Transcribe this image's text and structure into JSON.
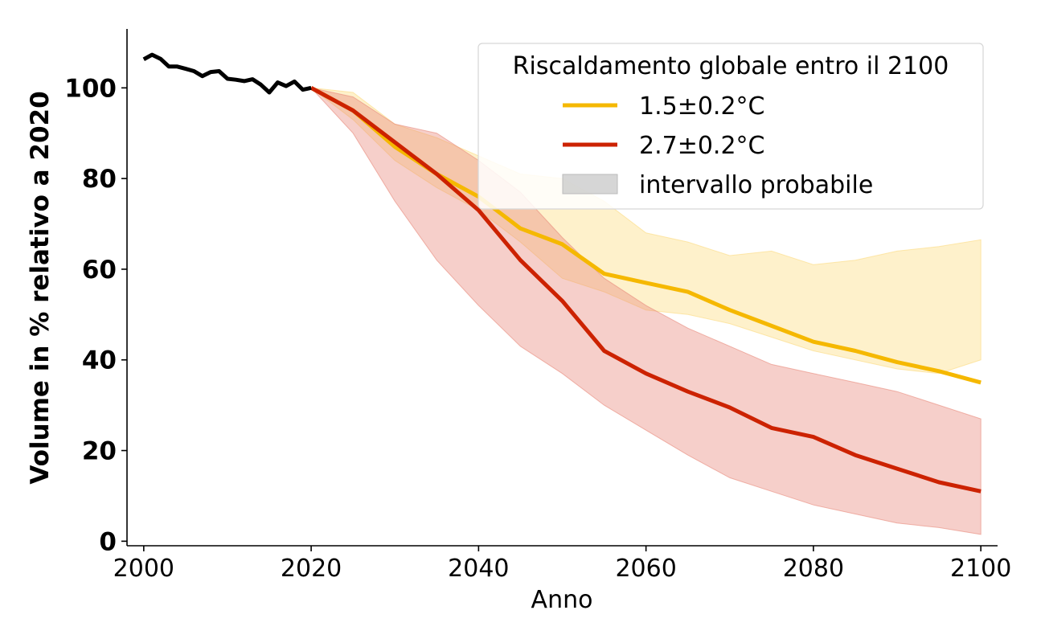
{
  "chart_data": {
    "type": "line",
    "title": "",
    "xlabel": "Anno",
    "ylabel": "Volume in % relativo a 2020",
    "xlim": [
      1998,
      2102
    ],
    "ylim": [
      -1,
      113
    ],
    "xticks": [
      2000,
      2020,
      2040,
      2060,
      2080,
      2100
    ],
    "yticks": [
      0,
      20,
      40,
      60,
      80,
      100
    ],
    "grid": false,
    "legend": {
      "position": "top-right",
      "title": "Riscaldamento globale entro il 2100",
      "entries": [
        "1.5±0.2°C",
        "2.7±0.2°C",
        "intervallo probabile"
      ]
    },
    "historical": {
      "color": "#000000",
      "x": [
        2000,
        2001,
        2002,
        2003,
        2004,
        2005,
        2006,
        2007,
        2008,
        2009,
        2010,
        2011,
        2012,
        2013,
        2014,
        2015,
        2016,
        2017,
        2018,
        2019,
        2020
      ],
      "y": [
        106.3,
        107.3,
        106.4,
        104.7,
        104.7,
        104.2,
        103.7,
        102.6,
        103.5,
        103.7,
        102.0,
        101.8,
        101.5,
        101.9,
        100.7,
        99.0,
        101.2,
        100.4,
        101.4,
        99.6,
        100.0
      ]
    },
    "series": [
      {
        "name": "1.5±0.2°C",
        "color": "#f5b800",
        "band_color": "#fcdb7e",
        "x": [
          2020,
          2025,
          2030,
          2035,
          2040,
          2045,
          2050,
          2055,
          2060,
          2065,
          2070,
          2075,
          2080,
          2085,
          2090,
          2095,
          2100
        ],
        "y": [
          100,
          95,
          87,
          81,
          76,
          69,
          65.5,
          59,
          57,
          55,
          51,
          47.5,
          44,
          42,
          39.5,
          37.5,
          35
        ],
        "low": [
          100,
          93,
          84,
          78,
          73,
          66,
          58,
          55,
          51,
          50,
          48,
          45,
          42,
          40,
          38,
          37,
          40
        ],
        "high": [
          100,
          99,
          92,
          89,
          85,
          81,
          80,
          75,
          68,
          66,
          63,
          64,
          61,
          62,
          64,
          65,
          66.5
        ]
      },
      {
        "name": "2.7±0.2°C",
        "color": "#cc2200",
        "band_color": "#e8887a",
        "x": [
          2020,
          2025,
          2030,
          2035,
          2040,
          2045,
          2050,
          2055,
          2060,
          2065,
          2070,
          2075,
          2080,
          2085,
          2090,
          2095,
          2100
        ],
        "y": [
          100,
          95,
          88,
          81,
          73,
          62,
          53,
          42,
          37,
          33,
          29.5,
          25,
          23,
          19,
          16,
          13,
          11
        ],
        "low": [
          100,
          90,
          75,
          62,
          52,
          43,
          37,
          30,
          24.5,
          19,
          14,
          11,
          8,
          6,
          4,
          3,
          1.5
        ],
        "high": [
          100,
          98,
          92,
          90,
          84,
          77,
          67,
          58,
          52,
          47,
          43,
          39,
          37,
          35,
          33,
          30,
          27
        ]
      }
    ]
  }
}
